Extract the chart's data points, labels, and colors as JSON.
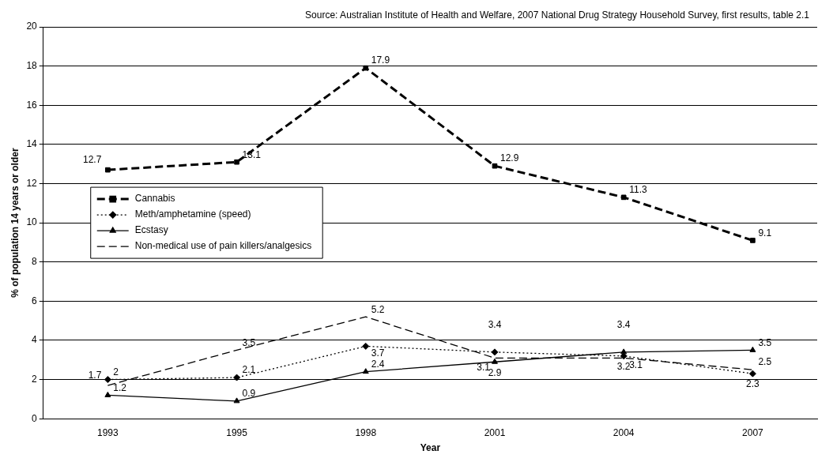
{
  "chart_data": {
    "type": "line",
    "xlabel": "Year",
    "ylabel": "% of population 14 years or older",
    "annotations": [
      "Source: Australian Institute of Health and Welfare, 2007 National Drug Strategy Household Survey, first results, table 2.1"
    ],
    "categories": [
      "1993",
      "1995",
      "1998",
      "2001",
      "2004",
      "2007"
    ],
    "series": [
      {
        "name": "Cannabis",
        "color": "#000000",
        "values": [
          12.7,
          13.1,
          17.9,
          12.9,
          11.3,
          9.1
        ],
        "marker": "square",
        "line_style": "dashed"
      },
      {
        "name": "Meth/amphetamine (speed)",
        "color": "#000000",
        "values": [
          2,
          2.1,
          3.7,
          3.4,
          3.2,
          2.3
        ],
        "marker": "diamond",
        "line_style": "dotted"
      },
      {
        "name": "Ecstasy",
        "color": "#000000",
        "values": [
          1.2,
          0.9,
          2.4,
          2.9,
          3.4,
          3.5
        ],
        "marker": "triangle",
        "line_style": "solid"
      },
      {
        "name": "Non-medical use of pain killers/analgesics",
        "color": "#000000",
        "values": [
          1.7,
          3.5,
          5.2,
          3.1,
          3.1,
          2.5
        ],
        "marker": "none",
        "line_style": "dashed"
      }
    ],
    "ylim": [
      0,
      20
    ],
    "yticks": [
      0,
      2,
      4,
      6,
      8,
      10,
      12,
      14,
      16,
      18,
      20
    ],
    "grid": "y",
    "legend": "left",
    "data_labels": true
  }
}
